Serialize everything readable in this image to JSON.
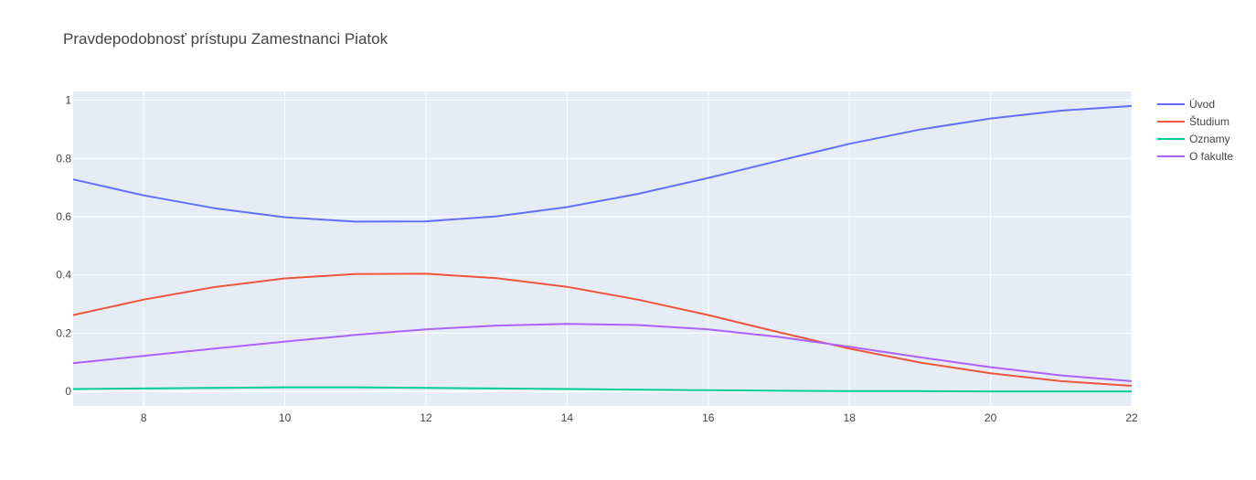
{
  "chart_data": {
    "type": "line",
    "title": "Pravdepodobnosť prístupu Zamestnanci Piatok",
    "xlabel": "",
    "ylabel": "",
    "xlim": [
      7,
      22
    ],
    "ylim": [
      -0.05,
      1.03
    ],
    "x": [
      7,
      8,
      9,
      10,
      11,
      12,
      13,
      14,
      15,
      16,
      17,
      18,
      19,
      20,
      21,
      22
    ],
    "x_ticks": [
      8,
      10,
      12,
      14,
      16,
      18,
      20,
      22
    ],
    "y_ticks": [
      0,
      0.2,
      0.4,
      0.6,
      0.8,
      1
    ],
    "y_tick_labels": [
      "0",
      "0.2",
      "0.4",
      "0.6",
      "0.8",
      "1"
    ],
    "grid": true,
    "legend_position": "top-right",
    "background_color": "#E5ECF6",
    "series": [
      {
        "name": "Úvod",
        "color": "#636EFA",
        "values": [
          0.728,
          0.673,
          0.629,
          0.598,
          0.583,
          0.584,
          0.601,
          0.633,
          0.678,
          0.733,
          0.792,
          0.85,
          0.899,
          0.937,
          0.964,
          0.98
        ]
      },
      {
        "name": "Študium",
        "color": "#EF553B",
        "values": [
          0.262,
          0.315,
          0.358,
          0.388,
          0.403,
          0.404,
          0.389,
          0.359,
          0.315,
          0.262,
          0.203,
          0.147,
          0.099,
          0.062,
          0.035,
          0.019
        ]
      },
      {
        "name": "Oznamy",
        "color": "#00CC96",
        "values": [
          0.008,
          0.01,
          0.012,
          0.014,
          0.014,
          0.012,
          0.01,
          0.008,
          0.006,
          0.004,
          0.002,
          0.001,
          0.001,
          0.0,
          0.0,
          0.0
        ]
      },
      {
        "name": "O fakulte",
        "color": "#AB63FA",
        "values": [
          0.097,
          0.122,
          0.147,
          0.171,
          0.194,
          0.213,
          0.226,
          0.232,
          0.228,
          0.213,
          0.187,
          0.153,
          0.117,
          0.083,
          0.055,
          0.035
        ]
      }
    ]
  }
}
